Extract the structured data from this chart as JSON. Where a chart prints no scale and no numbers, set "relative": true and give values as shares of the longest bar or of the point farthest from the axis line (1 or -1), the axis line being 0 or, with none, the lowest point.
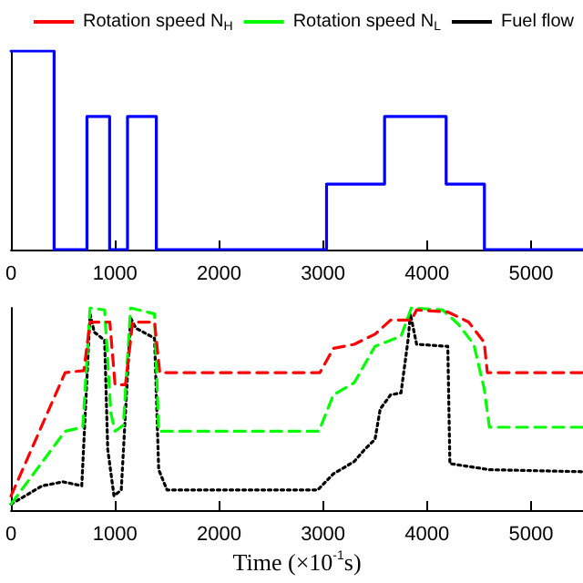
{
  "chart_data": [
    {
      "type": "step",
      "relative": true,
      "xlim": [
        0,
        5500
      ],
      "xticks": [
        0,
        1000,
        2000,
        3000,
        4000,
        5000
      ],
      "grid": false,
      "marker": "none",
      "x": [
        0,
        414,
        730,
        948,
        1120,
        1397,
        3034,
        3592,
        4184,
        4552,
        5500
      ],
      "series": [
        {
          "color": "#0000ff",
          "line_style": "solid",
          "values": [
            1,
            0,
            0.67,
            0,
            0.67,
            0,
            0.33,
            0.67,
            0.33,
            0,
            0
          ]
        }
      ]
    },
    {
      "type": "line",
      "relative": true,
      "xlim": [
        0,
        5500
      ],
      "xticks": [
        0,
        1000,
        2000,
        3000,
        4000,
        5000
      ],
      "grid": false,
      "marker": "none",
      "legend": "top",
      "xlabel": "Time (×10$^{-1}$s)",
      "series": [
        {
          "name": "Rotation speed N$_{H}$",
          "color": "#ff0000",
          "line_style": "dashed",
          "x": [
            0,
            520,
            700,
            760,
            950,
            1000,
            1100,
            1170,
            1380,
            1430,
            2970,
            3100,
            3300,
            3500,
            3650,
            3850,
            3900,
            4200,
            4400,
            4550,
            4580,
            5500
          ],
          "values": [
            0.07,
            0.68,
            0.69,
            0.93,
            0.93,
            0.62,
            0.62,
            0.93,
            0.93,
            0.68,
            0.68,
            0.8,
            0.82,
            0.87,
            0.94,
            0.94,
            0.99,
            0.98,
            0.93,
            0.83,
            0.68,
            0.68
          ]
        },
        {
          "name": "Rotation speed N$_{L}$",
          "color": "#00ff00",
          "line_style": "dashed",
          "x": [
            0,
            520,
            690,
            760,
            900,
            960,
            1000,
            1080,
            1150,
            1380,
            1420,
            2960,
            3100,
            3300,
            3500,
            3750,
            3850,
            4150,
            4300,
            4450,
            4550,
            4600,
            5500
          ],
          "values": [
            0.03,
            0.39,
            0.41,
            1,
            0.99,
            0.48,
            0.39,
            0.42,
            1,
            0.97,
            0.39,
            0.39,
            0.57,
            0.63,
            0.81,
            0.86,
            1,
            0.99,
            0.92,
            0.82,
            0.6,
            0.41,
            0.41
          ]
        },
        {
          "name": "Fuel flow",
          "color": "#000000",
          "line_style": "dotted",
          "x": [
            0,
            300,
            500,
            680,
            760,
            800,
            900,
            930,
            990,
            1060,
            1150,
            1200,
            1380,
            1420,
            1500,
            2950,
            3100,
            3300,
            3400,
            3500,
            3550,
            3650,
            3750,
            3820,
            3840,
            3900,
            4200,
            4220,
            4600,
            5500
          ],
          "values": [
            0.03,
            0.12,
            0.14,
            0.12,
            0.97,
            0.88,
            0.84,
            0.3,
            0.07,
            0.1,
            0.95,
            0.9,
            0.85,
            0.2,
            0.1,
            0.1,
            0.18,
            0.24,
            0.3,
            0.35,
            0.5,
            0.57,
            0.58,
            0.85,
            0.97,
            0.82,
            0.81,
            0.23,
            0.2,
            0.19
          ]
        }
      ]
    }
  ]
}
